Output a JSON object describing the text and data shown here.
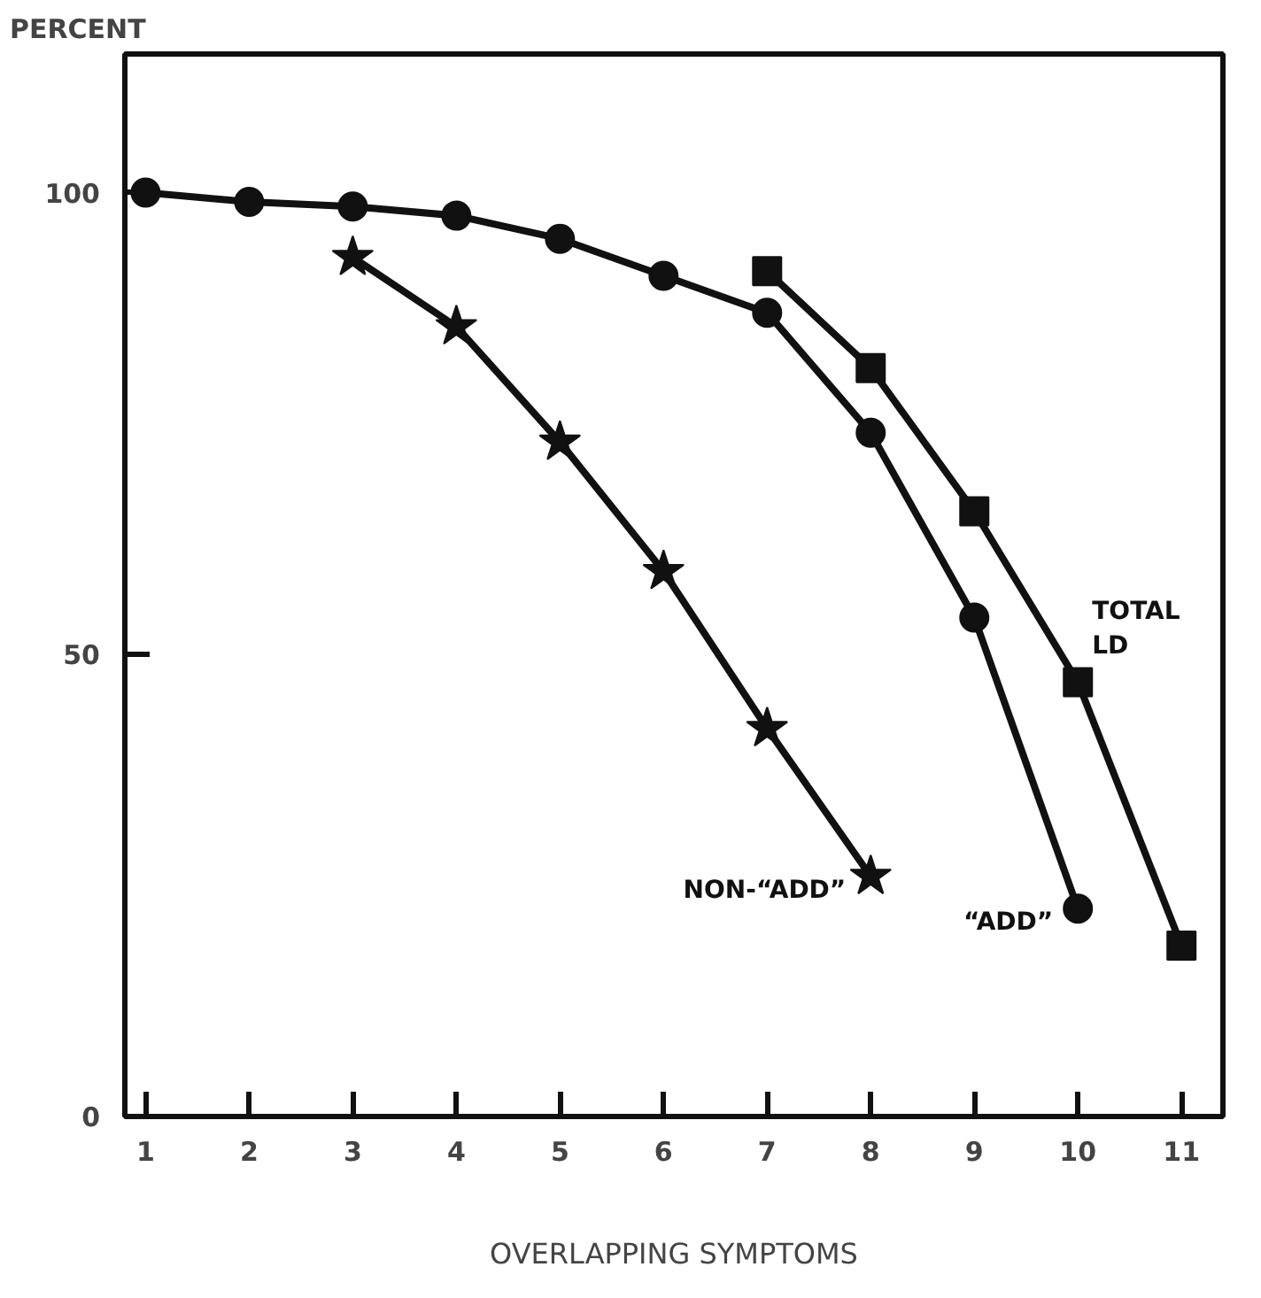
{
  "chart_data": {
    "type": "line",
    "xlabel": "OVERLAPPING SYMPTOMS",
    "ylabel": "PERCENT",
    "xlim": [
      0.8,
      11.4
    ],
    "ylim": [
      0,
      115
    ],
    "xticks": [
      1,
      2,
      3,
      4,
      5,
      6,
      7,
      8,
      9,
      10,
      11
    ],
    "yticks": [
      0,
      50,
      100
    ],
    "grid": false,
    "line_style": "solid",
    "series": [
      {
        "name": "NON-“ADD”",
        "color": "#111111",
        "marker": "star",
        "x": [
          3,
          4,
          5,
          6,
          7,
          8
        ],
        "values": [
          93,
          85.5,
          73,
          59,
          42,
          26
        ]
      },
      {
        "name": "“ADD”",
        "color": "#111111",
        "marker": "circle",
        "x": [
          1,
          2,
          3,
          4,
          5,
          6,
          7,
          8,
          9,
          10
        ],
        "values": [
          100,
          99,
          98.5,
          97.5,
          95,
          91,
          87,
          74,
          54,
          22.5
        ]
      },
      {
        "name": "TOTAL LD",
        "color": "#111111",
        "marker": "square",
        "x": [
          7,
          8,
          9,
          10,
          11
        ],
        "values": [
          91.5,
          81,
          65.5,
          47,
          18.5
        ]
      }
    ]
  }
}
